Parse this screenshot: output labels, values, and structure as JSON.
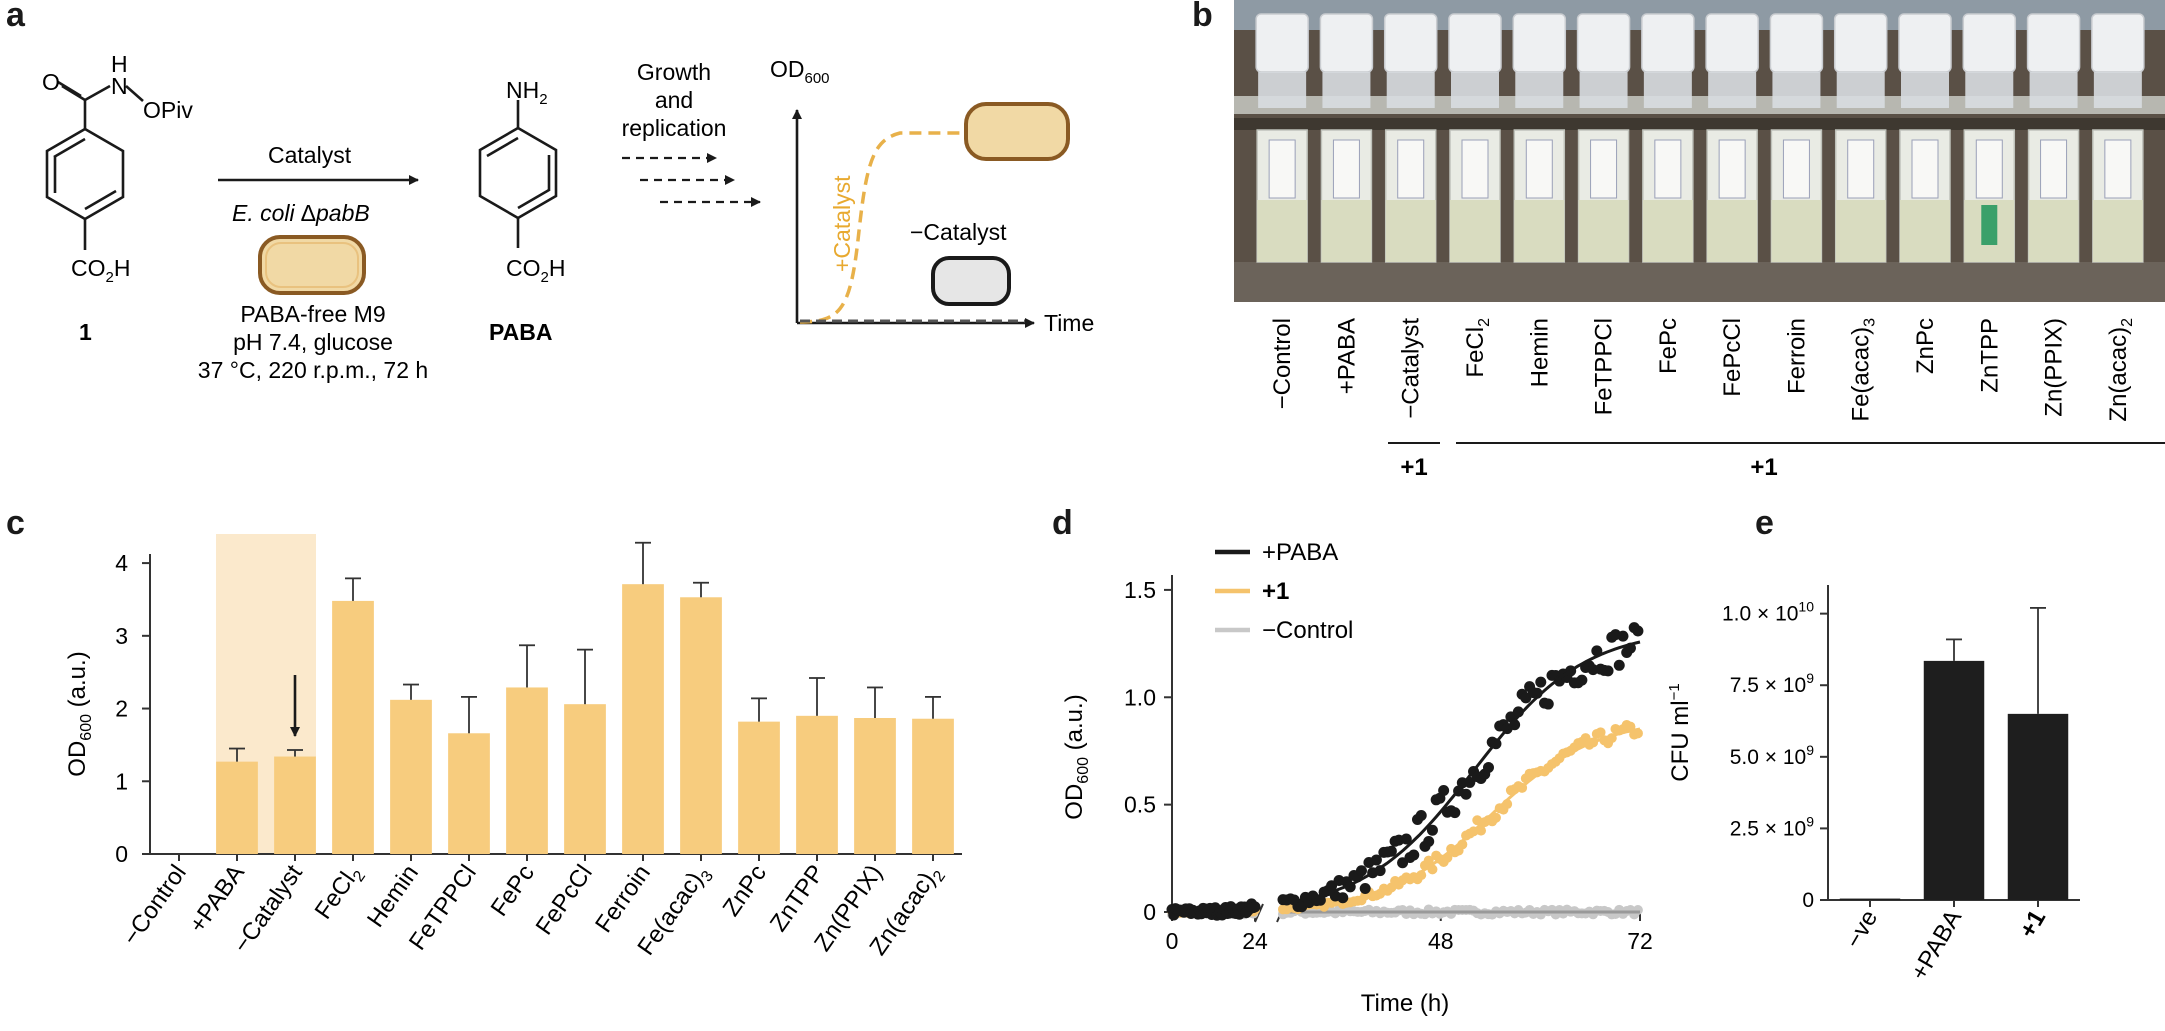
{
  "panel_labels": {
    "a": "a",
    "b": "b",
    "c": "c",
    "d": "d",
    "e": "e"
  },
  "scheme": {
    "compound_label": "1",
    "substituent_opiv": "OPiv",
    "amide_o": "O",
    "amide_h": "H",
    "amide_n": "N",
    "acid_group_1": "CO",
    "acid_sub": "2",
    "acid_h": "H",
    "arrow_top": "Catalyst",
    "organism": "E. coli",
    "gene_delta": "Δ",
    "gene": "pabB",
    "conditions": [
      "PABA-free M9",
      "pH 7.4, glucose",
      "37 °C, 220 r.p.m., 72 h"
    ],
    "product_amine": "NH",
    "product_amine_sub": "2",
    "product_label": "PABA",
    "growth_text": [
      "Growth",
      "and",
      "replication"
    ],
    "od_axis": "OD",
    "od_sub": "600",
    "time_axis": "Time",
    "plus_catalyst": "+Catalyst",
    "minus_catalyst": "−Catalyst"
  },
  "photo": {
    "tube_labels": [
      "−Control",
      "+PABA",
      "−Catalyst",
      "FeCl2",
      "Hemin",
      "FeTPPCl",
      "FePc",
      "FePcCl",
      "Ferroin",
      "Fe(acac)3",
      "ZnPc",
      "ZnTPP",
      "Zn(PPIX)",
      "Zn(acac)2"
    ],
    "bracket_left": "+1",
    "bracket_right": "+1",
    "colors": {
      "liquid": "#d9dcc0",
      "green_tube": "#3aa06a"
    }
  },
  "chart_data": [
    {
      "id": "c",
      "type": "bar",
      "ylabel": "OD",
      "ylabel_sub": "600",
      "ylabel_suffix": " (a.u.)",
      "ylim": [
        0,
        4.4
      ],
      "yticks": [
        0,
        1,
        2,
        3,
        4
      ],
      "categories": [
        "−Control",
        "+PABA",
        "−Catalyst",
        "FeCl2",
        "Hemin",
        "FeTPPCl",
        "FePc",
        "FePcCl",
        "Ferroin",
        "Fe(acac)3",
        "ZnPc",
        "ZnTPP",
        "Zn(PPIX)",
        "Zn(acac)2"
      ],
      "values": [
        0.0,
        1.27,
        1.34,
        3.48,
        2.12,
        1.66,
        2.29,
        2.06,
        3.71,
        3.53,
        1.82,
        1.9,
        1.87,
        1.86
      ],
      "errors": [
        0.0,
        0.18,
        0.09,
        0.31,
        0.21,
        0.5,
        0.58,
        0.75,
        0.57,
        0.2,
        0.32,
        0.52,
        0.42,
        0.3
      ],
      "highlight_categories": [
        "+PABA",
        "−Catalyst"
      ],
      "arrow_category": "−Catalyst",
      "colors": {
        "bar": "#f7cc7e",
        "highlight": "#fbe9cc",
        "axis": "#333333"
      }
    },
    {
      "id": "d",
      "type": "scatter",
      "xlabel": "Time (h)",
      "ylabel": "OD",
      "ylabel_sub": "600",
      "ylabel_suffix": " (a.u.)",
      "xticks": [
        0,
        24,
        48,
        72
      ],
      "yticks": [
        0,
        0.5,
        1.0,
        1.5
      ],
      "ytick_labels": [
        "0",
        "0.5",
        "1.0",
        "1.5"
      ],
      "ylim": [
        -0.05,
        1.5
      ],
      "axis_break_between": [
        24,
        29
      ],
      "legend": [
        "+PABA",
        "+1",
        "−Control"
      ],
      "series": [
        {
          "name": "+PABA",
          "color": "#1a1a1a",
          "fit": {
            "K": 1.32,
            "r": 0.15,
            "t0": 52
          }
        },
        {
          "name": "+1",
          "color": "#f5c36c",
          "fit": {
            "K": 0.9,
            "r": 0.16,
            "t0": 54
          }
        },
        {
          "name": "−Control",
          "color": "#c8c8c8",
          "fit": {
            "K": 0.0,
            "r": 0.1,
            "t0": 50
          }
        }
      ]
    },
    {
      "id": "e",
      "type": "bar",
      "ylabel": "CFU ml",
      "ylabel_sup": "−1",
      "ylim": [
        0,
        11000000000.0
      ],
      "yticks": [
        0,
        2500000000.0,
        5000000000.0,
        7500000000.0,
        10000000000.0
      ],
      "ytick_labels": [
        "0",
        "2.5 × 10",
        "5.0 × 10",
        "7.5 × 10",
        "1.0 × 10"
      ],
      "ytick_sups": [
        "",
        "9",
        "9",
        "9",
        "10"
      ],
      "categories": [
        "−ve",
        "+PABA",
        "+1"
      ],
      "values": [
        50000000.0,
        8350000000.0,
        6500000000.0
      ],
      "errors": [
        0,
        750000000.0,
        3700000000.0
      ],
      "colors": {
        "bar": "#1e1e1e"
      }
    }
  ]
}
